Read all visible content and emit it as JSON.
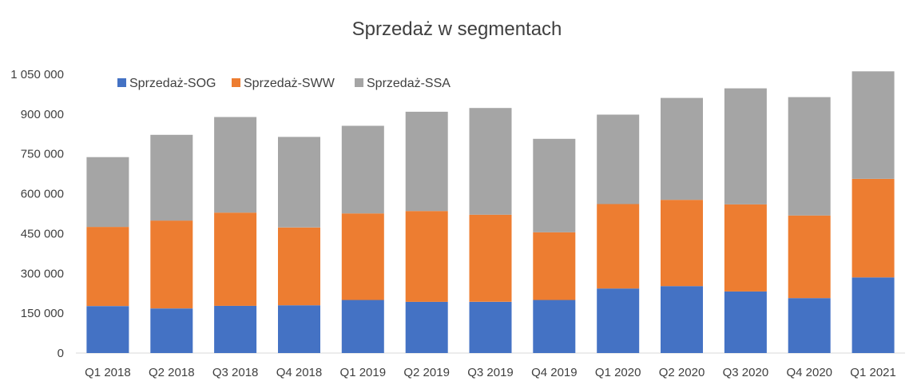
{
  "chart_data": {
    "type": "bar",
    "stacked": true,
    "title": "Sprzedaż w segmentach",
    "xlabel": "",
    "ylabel": "",
    "categories": [
      "Q1 2018",
      "Q2 2018",
      "Q3 2018",
      "Q4 2018",
      "Q1 2019",
      "Q2 2019",
      "Q3 2019",
      "Q4 2019",
      "Q1 2020",
      "Q2 2020",
      "Q3 2020",
      "Q4 2020",
      "Q1 2021"
    ],
    "series": [
      {
        "name": "Sprzedaż-SOG",
        "color": "#4472C4",
        "values": [
          177000,
          168000,
          178000,
          180000,
          200000,
          193000,
          193000,
          200000,
          243000,
          252000,
          232000,
          207000,
          285000
        ]
      },
      {
        "name": "Sprzedaż-SWW",
        "color": "#ED7D31",
        "values": [
          298000,
          331000,
          351000,
          293000,
          326000,
          342000,
          328000,
          255000,
          318000,
          325000,
          328000,
          311000,
          371000
        ]
      },
      {
        "name": "Sprzedaż-SSA",
        "color": "#A5A5A5",
        "values": [
          263000,
          323000,
          360000,
          341000,
          330000,
          374000,
          402000,
          352000,
          337000,
          384000,
          437000,
          446000,
          405000
        ]
      }
    ],
    "ylim": [
      0,
      1050000
    ],
    "yticks": [
      0,
      150000,
      300000,
      450000,
      600000,
      750000,
      900000,
      1050000
    ],
    "ytick_labels": [
      "0",
      "150 000",
      "300 000",
      "450 000",
      "600 000",
      "750 000",
      "900 000",
      "1 050 000"
    ],
    "grid": false,
    "legend_position": "top-left"
  }
}
